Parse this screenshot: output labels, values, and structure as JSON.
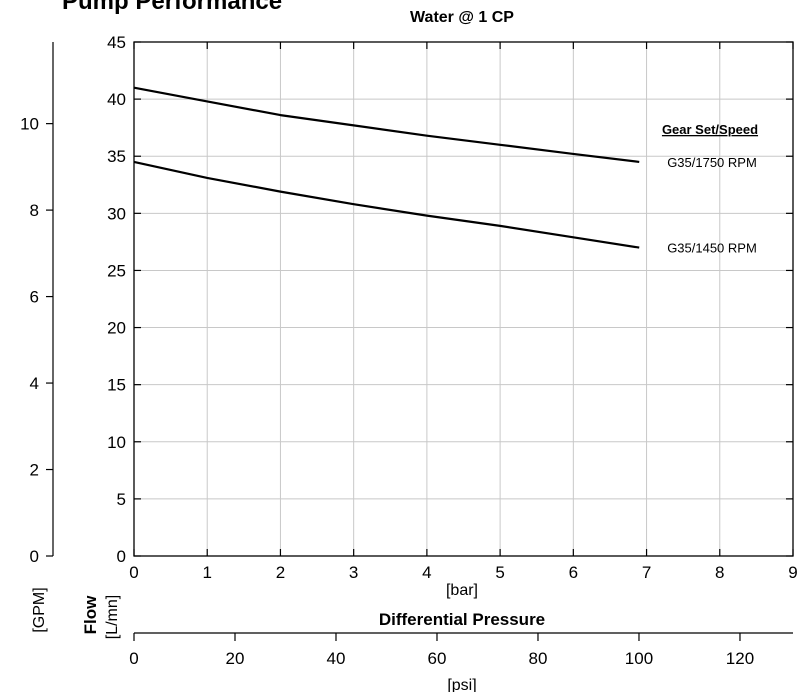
{
  "header": {
    "title": "Pump Performance",
    "title_color": "#1e73be",
    "subtitle": "Water @ 1 CP"
  },
  "chart_data": {
    "type": "line",
    "xlabel": "[bar]",
    "axis_title": "Differential Pressure",
    "xlim": [
      0,
      9
    ],
    "x_ticks": [
      0,
      1,
      2,
      3,
      4,
      5,
      6,
      7,
      8,
      9
    ],
    "ylim": [
      0,
      45
    ],
    "y_ticks": [
      0,
      5,
      10,
      15,
      20,
      25,
      30,
      35,
      40,
      45
    ],
    "y_unit": "[L/mn]",
    "flow_label": "Flow",
    "gpm_axis": {
      "unit": "[GPM]",
      "ticks": [
        0,
        2,
        4,
        6,
        8,
        10
      ],
      "lim": [
        0,
        11.888
      ]
    },
    "psi_axis": {
      "unit": "[psi]",
      "ticks": [
        0,
        20,
        40,
        60,
        80,
        100,
        120
      ],
      "lim": [
        0,
        130.5
      ]
    },
    "grid": true,
    "legend": {
      "title": "Gear Set/Speed",
      "placement": "right"
    },
    "series": [
      {
        "name": "G35/1750 RPM",
        "x": [
          0,
          1,
          2,
          3,
          4,
          5,
          6,
          6.9
        ],
        "y": [
          41,
          39.8,
          38.6,
          37.7,
          36.8,
          36.0,
          35.2,
          34.5
        ]
      },
      {
        "name": "G35/1450 RPM",
        "x": [
          0,
          1,
          2,
          3,
          4,
          5,
          6,
          6.9
        ],
        "y": [
          34.5,
          33.1,
          31.9,
          30.8,
          29.8,
          28.9,
          27.9,
          27.0
        ]
      }
    ]
  }
}
